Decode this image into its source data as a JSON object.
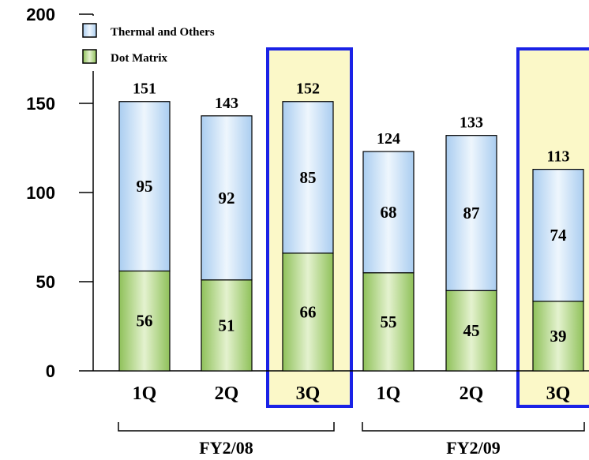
{
  "chart_data": {
    "type": "bar",
    "stacked": true,
    "title": "",
    "xlabel": "",
    "ylabel": "",
    "ylim": [
      0,
      200
    ],
    "yticks": [
      "0",
      "50",
      "100",
      "150",
      "200"
    ],
    "categories": [
      "1Q",
      "2Q",
      "3Q",
      "1Q",
      "2Q",
      "3Q"
    ],
    "groups": [
      {
        "label": "FY2/08",
        "categories": [
          0,
          1,
          2
        ]
      },
      {
        "label": "FY2/09",
        "categories": [
          3,
          4,
          5
        ]
      }
    ],
    "highlighted": [
      2,
      5
    ],
    "series": [
      {
        "name": "Dot Matrix",
        "values": [
          56,
          51,
          66,
          55,
          45,
          39
        ],
        "color": "#a8d07a"
      },
      {
        "name": "Thermal and Others",
        "values": [
          95,
          92,
          85,
          68,
          87,
          74
        ],
        "color": "#cde3f7"
      }
    ],
    "totals": [
      151,
      143,
      152,
      124,
      133,
      113
    ],
    "legend_position": "top-left",
    "grid": false,
    "colors": {
      "highlight_fill": "#fbf8c8",
      "highlight_border": "#1a22e6",
      "axis": "#000000"
    }
  }
}
